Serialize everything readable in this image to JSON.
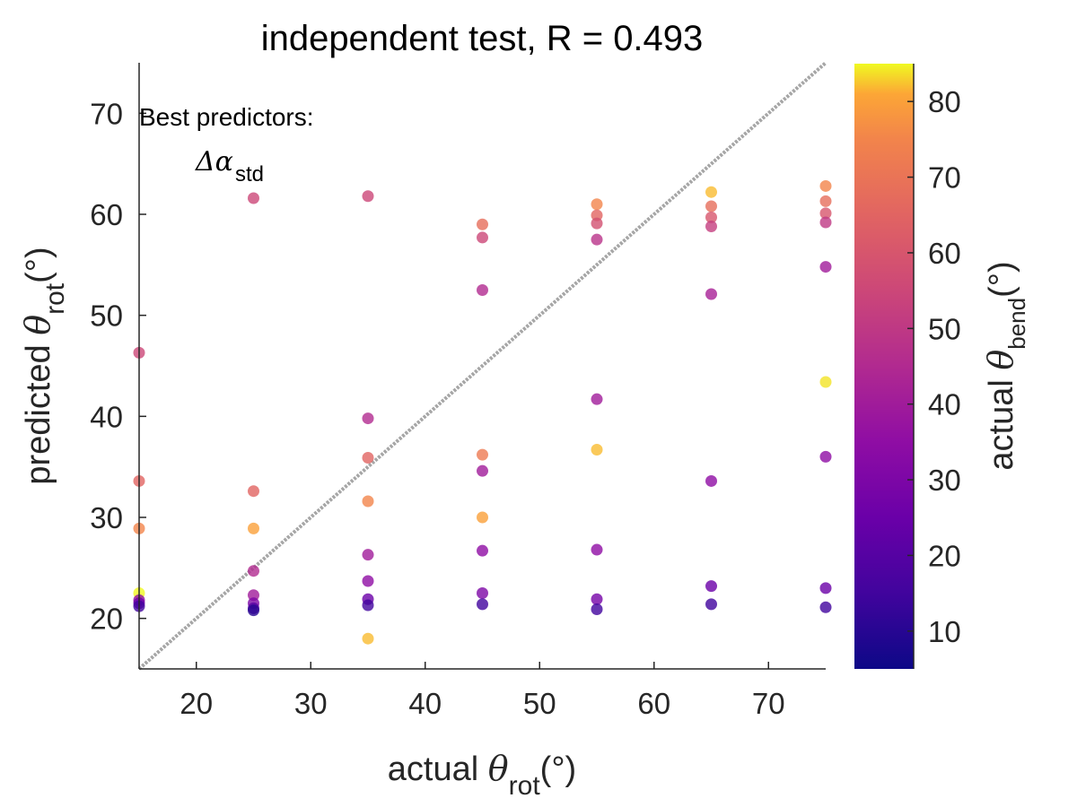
{
  "chart_data": {
    "type": "scatter",
    "title": "independent test, R = 0.493",
    "xlabel": {
      "prefix": "actual ",
      "symbol": "θ",
      "sub": "rot",
      "suffix": "(°)"
    },
    "ylabel": {
      "prefix": "predicted ",
      "symbol": "θ",
      "sub": "rot",
      "suffix": "(°)"
    },
    "colorbar_label": {
      "prefix": "actual ",
      "symbol": "θ",
      "sub": "bend",
      "suffix": "(°)"
    },
    "annotation": {
      "line1": "Best predictors:",
      "symbol": "Δα",
      "sub": "std"
    },
    "xlim": [
      15,
      75
    ],
    "ylim": [
      15,
      75
    ],
    "clim": [
      5,
      85
    ],
    "xticks": [
      20,
      30,
      40,
      50,
      60,
      70
    ],
    "yticks": [
      20,
      30,
      40,
      50,
      60,
      70
    ],
    "cticks": [
      10,
      20,
      30,
      40,
      50,
      60,
      70,
      80
    ],
    "xtick_labels": [
      "20",
      "30",
      "40",
      "50",
      "60",
      "70"
    ],
    "ytick_labels": [
      "20",
      "30",
      "40",
      "50",
      "60",
      "70"
    ],
    "ctick_labels": [
      "10",
      "20",
      "30",
      "40",
      "50",
      "60",
      "70",
      "80"
    ],
    "reference_line": {
      "x": [
        15,
        75
      ],
      "y": [
        15,
        75
      ],
      "color": "#a6a6a6"
    },
    "colormap": "plasma",
    "grid": false,
    "points": [
      {
        "x": 15,
        "y": 46.3,
        "c": 55
      },
      {
        "x": 15,
        "y": 33.6,
        "c": 65
      },
      {
        "x": 15,
        "y": 28.9,
        "c": 75
      },
      {
        "x": 15,
        "y": 22.5,
        "c": 85
      },
      {
        "x": 15,
        "y": 21.8,
        "c": 35
      },
      {
        "x": 15,
        "y": 21.5,
        "c": 25
      },
      {
        "x": 15,
        "y": 21.2,
        "c": 15
      },
      {
        "x": 25,
        "y": 61.6,
        "c": 55
      },
      {
        "x": 25,
        "y": 32.6,
        "c": 65
      },
      {
        "x": 25,
        "y": 28.9,
        "c": 80
      },
      {
        "x": 25,
        "y": 24.7,
        "c": 45
      },
      {
        "x": 25,
        "y": 22.3,
        "c": 40
      },
      {
        "x": 25,
        "y": 21.5,
        "c": 30
      },
      {
        "x": 25,
        "y": 21.0,
        "c": 20
      },
      {
        "x": 25,
        "y": 20.8,
        "c": 10
      },
      {
        "x": 35,
        "y": 61.8,
        "c": 55
      },
      {
        "x": 35,
        "y": 39.8,
        "c": 45
      },
      {
        "x": 35,
        "y": 35.9,
        "c": 65
      },
      {
        "x": 35,
        "y": 31.6,
        "c": 75
      },
      {
        "x": 35,
        "y": 26.3,
        "c": 40
      },
      {
        "x": 35,
        "y": 23.7,
        "c": 35
      },
      {
        "x": 35,
        "y": 21.9,
        "c": 25
      },
      {
        "x": 35,
        "y": 21.3,
        "c": 15
      },
      {
        "x": 35,
        "y": 18.0,
        "c": 82
      },
      {
        "x": 45,
        "y": 59.0,
        "c": 68
      },
      {
        "x": 45,
        "y": 57.7,
        "c": 55
      },
      {
        "x": 45,
        "y": 52.5,
        "c": 45
      },
      {
        "x": 45,
        "y": 36.2,
        "c": 72
      },
      {
        "x": 45,
        "y": 34.6,
        "c": 40
      },
      {
        "x": 45,
        "y": 30.0,
        "c": 80
      },
      {
        "x": 45,
        "y": 26.7,
        "c": 35
      },
      {
        "x": 45,
        "y": 22.5,
        "c": 30
      },
      {
        "x": 45,
        "y": 21.4,
        "c": 15
      },
      {
        "x": 55,
        "y": 61.0,
        "c": 75
      },
      {
        "x": 55,
        "y": 59.9,
        "c": 65
      },
      {
        "x": 55,
        "y": 59.1,
        "c": 58
      },
      {
        "x": 55,
        "y": 57.5,
        "c": 48
      },
      {
        "x": 55,
        "y": 41.7,
        "c": 40
      },
      {
        "x": 55,
        "y": 36.7,
        "c": 82
      },
      {
        "x": 55,
        "y": 26.8,
        "c": 35
      },
      {
        "x": 55,
        "y": 21.9,
        "c": 28
      },
      {
        "x": 55,
        "y": 20.9,
        "c": 15
      },
      {
        "x": 65,
        "y": 62.2,
        "c": 82
      },
      {
        "x": 65,
        "y": 60.8,
        "c": 68
      },
      {
        "x": 65,
        "y": 59.7,
        "c": 60
      },
      {
        "x": 65,
        "y": 58.8,
        "c": 52
      },
      {
        "x": 65,
        "y": 52.1,
        "c": 42
      },
      {
        "x": 65,
        "y": 33.6,
        "c": 35
      },
      {
        "x": 65,
        "y": 23.2,
        "c": 25
      },
      {
        "x": 65,
        "y": 21.4,
        "c": 15
      },
      {
        "x": 75,
        "y": 62.8,
        "c": 75
      },
      {
        "x": 75,
        "y": 61.3,
        "c": 68
      },
      {
        "x": 75,
        "y": 60.1,
        "c": 60
      },
      {
        "x": 75,
        "y": 59.2,
        "c": 50
      },
      {
        "x": 75,
        "y": 54.8,
        "c": 40
      },
      {
        "x": 75,
        "y": 43.4,
        "c": 84
      },
      {
        "x": 75,
        "y": 36.0,
        "c": 35
      },
      {
        "x": 75,
        "y": 23.0,
        "c": 25
      },
      {
        "x": 75,
        "y": 21.1,
        "c": 15
      }
    ]
  }
}
